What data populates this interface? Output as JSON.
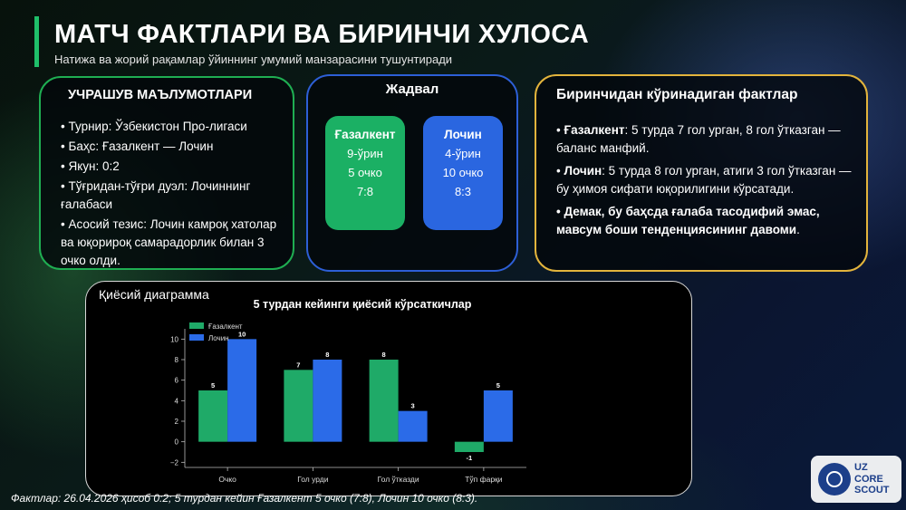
{
  "header": {
    "title": "МАТЧ ФАКТЛАРИ ВА БИРИНЧИ ХУЛОСА",
    "subtitle": "Натижа ва жорий рақамлар ўйиннинг умумий манзарасини тушунтиради"
  },
  "info": {
    "title": "УЧРАШУВ МАЪЛУМОТЛАРИ",
    "items": [
      "• Турнир: Ўзбекистон Про-лигаси",
      "• Баҳс: Ғазалкент — Лочин",
      "• Якун: 0:2",
      "• Тўғридан-тўғри дуэл: Лочиннинг ғалабаси",
      "• Асосий тезис: Лочин камроқ хатолар ва юқорироқ самарадорлик билан 3 очко олди."
    ]
  },
  "table": {
    "title": "Жадвал",
    "team_a": {
      "name": "Ғазалкент",
      "place": "9-ўрин",
      "points": "5 очко",
      "goals": "7:8"
    },
    "team_b": {
      "name": "Лочин",
      "place": "4-ўрин",
      "points": "10 очко",
      "goals": "8:3"
    }
  },
  "facts": {
    "title": "Биринчидан кўринадиган фактлар",
    "p1_team": "Ғазалкент",
    "p1_text": ": 5 турда 7 гол урган, 8 гол ўтказган — баланс манфий.",
    "p2_team": "Лочин",
    "p2_text": ": 5 турда 8 гол урган, атиги 3 гол ўтказган — бу ҳимоя сифати юқорилигини кўрсатади.",
    "p3_text": "• Демак, бу баҳсда ғалаба тасодифий эмас, мавсум боши тенденциясининг давоми",
    "p3_end": "."
  },
  "chart_section": {
    "label": "Қиёсий диаграмма"
  },
  "chart_data": {
    "type": "bar",
    "title": "5 турдан кейинги қиёсий кўрсаткичлар",
    "categories": [
      "Очко",
      "Гол урди",
      "Гол ўтказди",
      "Тўп фарқи"
    ],
    "series": [
      {
        "name": "Ғазалкент",
        "values": [
          5,
          7,
          8,
          -1
        ],
        "color": "#1faa68"
      },
      {
        "name": "Лочин",
        "values": [
          10,
          8,
          3,
          5
        ],
        "color": "#2b6be8"
      }
    ],
    "ylim": [
      -2.5,
      11
    ],
    "yticks": [
      -2,
      0,
      2,
      4,
      6,
      8,
      10
    ],
    "ytick_labels": [
      "−2",
      "0",
      "2",
      "4",
      "6",
      "8",
      "10"
    ],
    "legend": "top-left",
    "grid": false
  },
  "footnote": "Фактлар: 26.04.2026 ҳисоб 0:2; 5 турдан кейин Ғазалкент 5 очко (7:8), Лочин 10 очко (8:3).",
  "logo": {
    "line1": "UZ",
    "line2": "CORE",
    "line3": "SCOUT"
  }
}
